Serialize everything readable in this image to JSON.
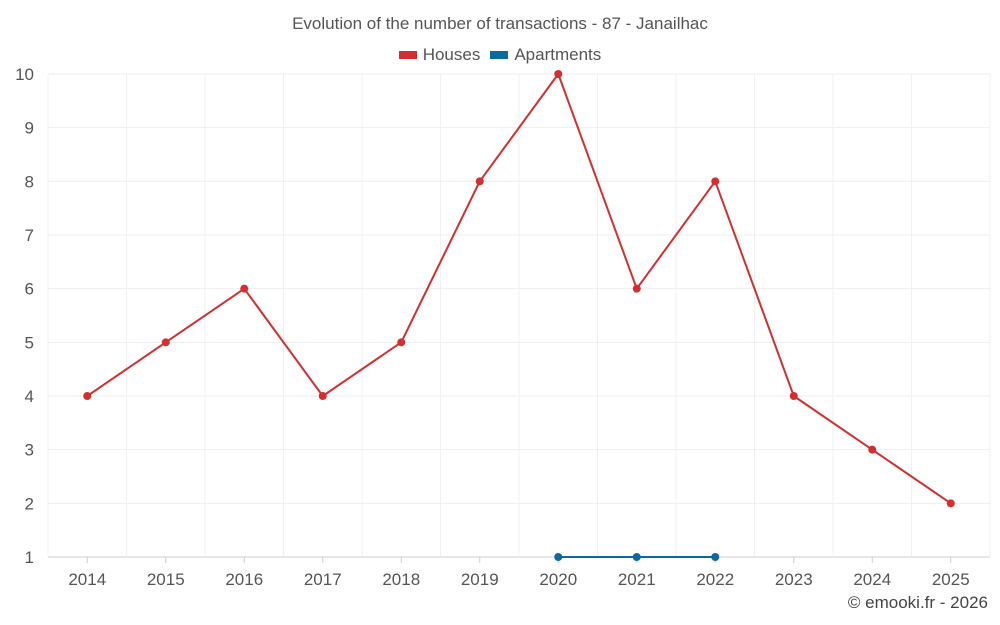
{
  "chart_data": {
    "type": "line",
    "title": "Evolution of the number of transactions - 87 - Janailhac",
    "categories": [
      "2014",
      "2015",
      "2016",
      "2017",
      "2018",
      "2019",
      "2020",
      "2021",
      "2022",
      "2023",
      "2024",
      "2025"
    ],
    "series": [
      {
        "name": "Houses",
        "color": "#d32f2f",
        "values": [
          4,
          5,
          6,
          4,
          5,
          8,
          10,
          6,
          8,
          4,
          3,
          2
        ]
      },
      {
        "name": "Apartments",
        "color": "#0a6aa1",
        "values": [
          null,
          null,
          null,
          null,
          null,
          null,
          1,
          1,
          1,
          null,
          null,
          null
        ]
      }
    ],
    "y_ticks": [
      "1",
      "2",
      "3",
      "4",
      "5",
      "6",
      "7",
      "8",
      "9",
      "10"
    ],
    "ylim": [
      1,
      10
    ],
    "grid": true,
    "legend_position": "top-center",
    "xlabel": "",
    "ylabel": ""
  },
  "credit": "© emooki.fr - 2026"
}
